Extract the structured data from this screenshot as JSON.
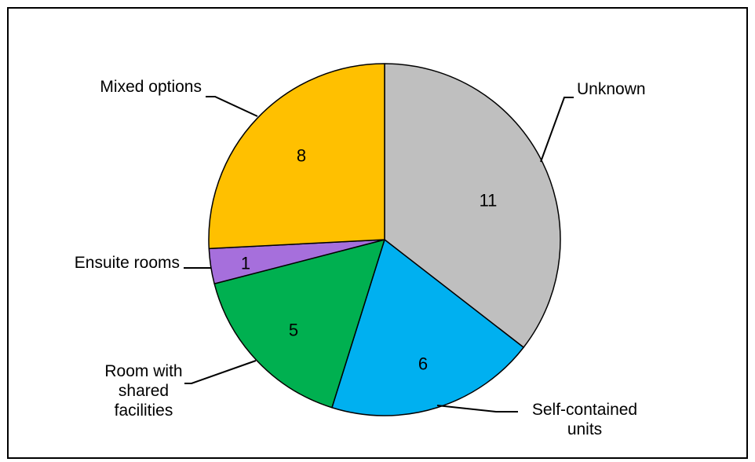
{
  "chart_data": {
    "type": "pie",
    "title": "",
    "start_angle_deg": 0,
    "direction": "clockwise",
    "slices": [
      {
        "label": "Unknown",
        "label_lines": [
          "Unknown"
        ],
        "value": 11,
        "value_text": "11",
        "color": "#BFBFBF"
      },
      {
        "label": "Self-contained units",
        "label_lines": [
          "Self-contained",
          "units"
        ],
        "value": 6,
        "value_text": "6",
        "color": "#00B0F0"
      },
      {
        "label": "Room with shared facilities",
        "label_lines": [
          "Room with",
          "shared",
          "facilities"
        ],
        "value": 5,
        "value_text": "5",
        "color": "#00B050"
      },
      {
        "label": "Ensuite rooms",
        "label_lines": [
          "Ensuite rooms"
        ],
        "value": 1,
        "value_text": "1",
        "color": "#A66FDC"
      },
      {
        "label": "Mixed options",
        "label_lines": [
          "Mixed options"
        ],
        "value": 8,
        "value_text": "8",
        "color": "#FFC000"
      }
    ],
    "legend": "none",
    "data_labels": "inside",
    "category_labels": "outside-with-leader-lines"
  }
}
